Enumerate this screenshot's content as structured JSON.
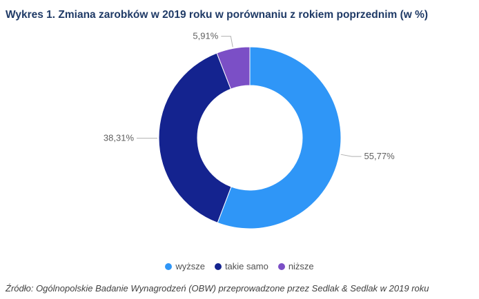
{
  "chart_data": {
    "type": "pie",
    "title": "Wykres 1. Zmiana zarobków w 2019 roku w porównaniu z rokiem poprzednim (w %)",
    "categories": [
      "wyższe",
      "takie samo",
      "niższe"
    ],
    "values": [
      55.77,
      38.31,
      5.91
    ],
    "labels": [
      "55,77%",
      "38,31%",
      "5,91%"
    ],
    "colors": [
      "#2f96f7",
      "#14238f",
      "#7b4fc6"
    ],
    "legend_position": "bottom",
    "donut": true
  },
  "source": "Źródło: Ogólnopolskie Badanie Wynagrodzeń (OBW) przeprowadzone przez Sedlak & Sedlak w 2019 roku"
}
